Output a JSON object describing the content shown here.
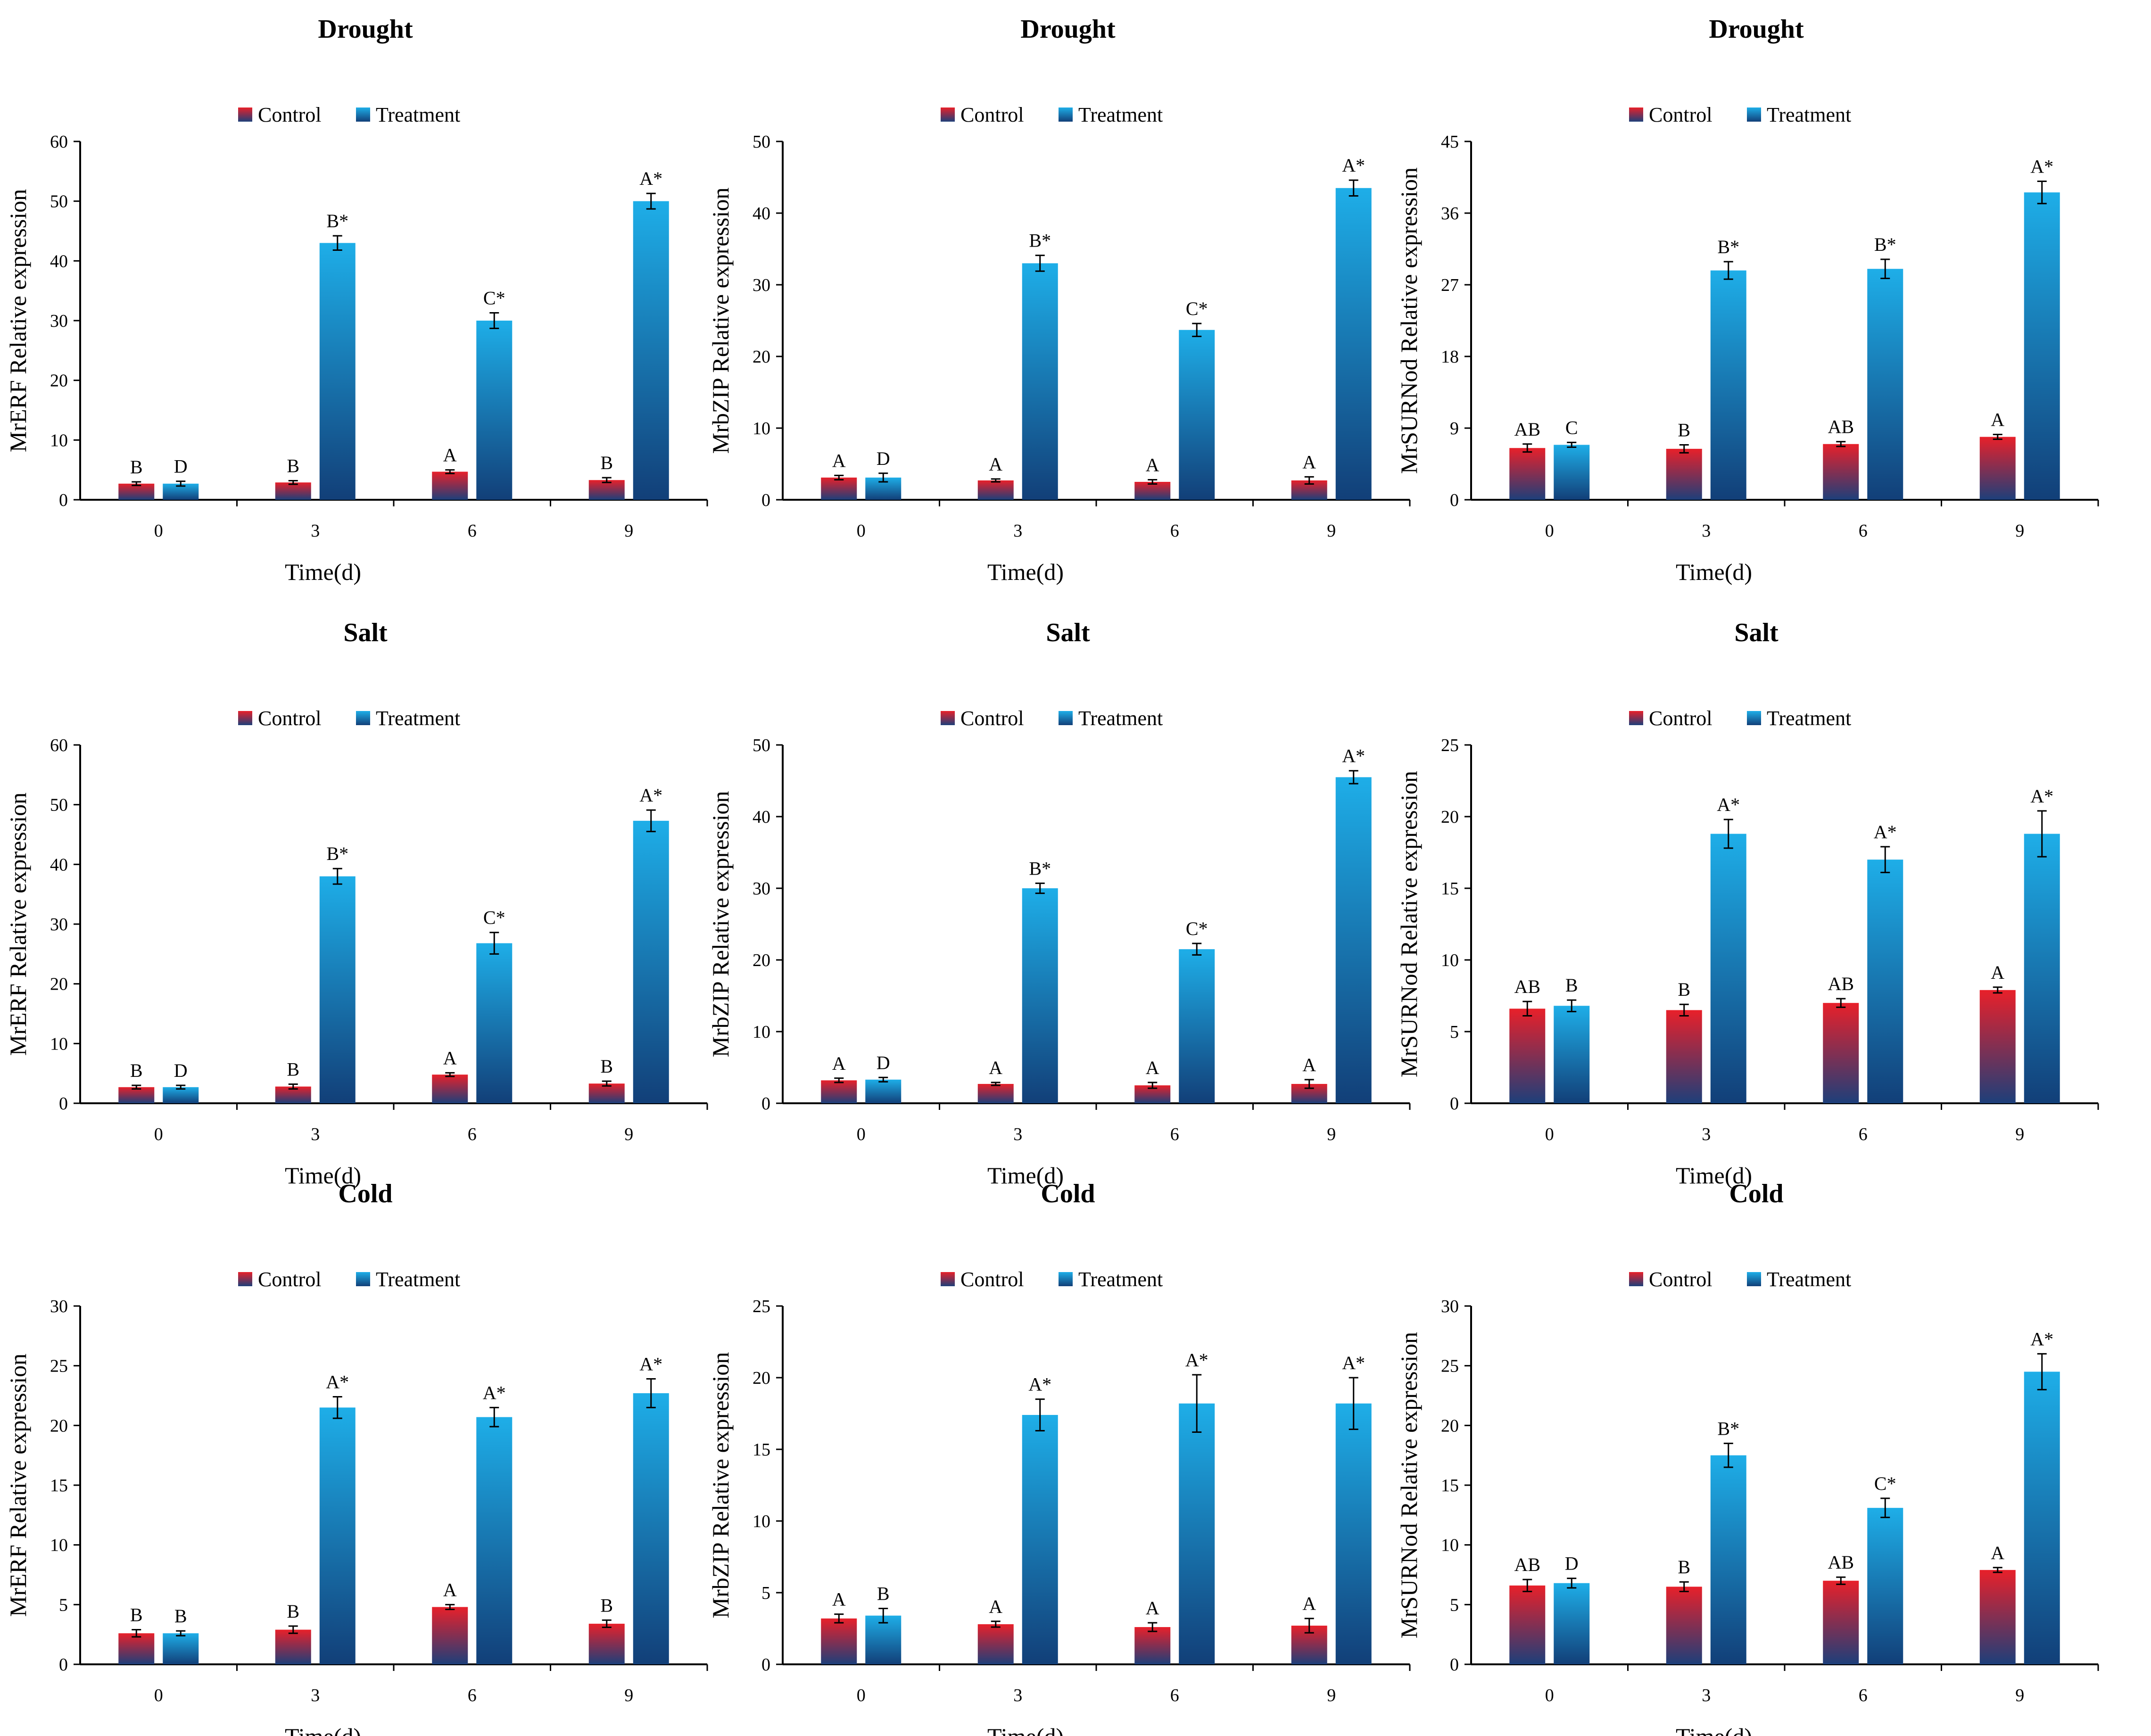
{
  "legend": {
    "control": "Control",
    "treatment": "Treatment"
  },
  "colors": {
    "control_top": "#e8202a",
    "control_bottom": "#1d3f7a",
    "treatment_top": "#1eaee8",
    "treatment_bottom": "#123f78",
    "axis": "#000000",
    "error_bar": "#000000"
  },
  "chart_data": [
    {
      "type": "bar",
      "title": "Drought",
      "ylabel": "MrERF Relative expression",
      "xlabel": "Time(d)",
      "categories": [
        "0",
        "3",
        "6",
        "9"
      ],
      "ylim": [
        0,
        60
      ],
      "yticks": [
        0,
        10,
        20,
        30,
        40,
        50,
        60
      ],
      "series": [
        {
          "name": "Control",
          "values": [
            2.7,
            2.9,
            4.7,
            3.3
          ],
          "errors": [
            0.3,
            0.3,
            0.3,
            0.4
          ],
          "labels": [
            "B",
            "B",
            "A",
            "B"
          ]
        },
        {
          "name": "Treatment",
          "values": [
            2.7,
            43.0,
            30.0,
            50.0
          ],
          "errors": [
            0.4,
            1.2,
            1.3,
            1.3
          ],
          "labels": [
            "D",
            "B*",
            "C*",
            "A*"
          ]
        }
      ]
    },
    {
      "type": "bar",
      "title": "Drought",
      "ylabel": "MrbZIP Relative expression",
      "xlabel": "Time(d)",
      "categories": [
        "0",
        "3",
        "6",
        "9"
      ],
      "ylim": [
        0,
        50
      ],
      "yticks": [
        0,
        10,
        20,
        30,
        40,
        50
      ],
      "series": [
        {
          "name": "Control",
          "values": [
            3.1,
            2.7,
            2.5,
            2.7
          ],
          "errors": [
            0.3,
            0.2,
            0.3,
            0.5
          ],
          "labels": [
            "A",
            "A",
            "A",
            "A"
          ]
        },
        {
          "name": "Treatment",
          "values": [
            3.1,
            33.0,
            23.7,
            43.5
          ],
          "errors": [
            0.6,
            1.1,
            0.9,
            1.1
          ],
          "labels": [
            "D",
            "B*",
            "C*",
            "A*"
          ]
        }
      ]
    },
    {
      "type": "bar",
      "title": "Drought",
      "ylabel": "MrSURNod Relative expression",
      "xlabel": "Time(d)",
      "categories": [
        "0",
        "3",
        "6",
        "9"
      ],
      "ylim": [
        0,
        45
      ],
      "yticks": [
        0,
        9,
        18,
        27,
        36,
        45
      ],
      "series": [
        {
          "name": "Control",
          "values": [
            6.5,
            6.4,
            7.0,
            7.9
          ],
          "errors": [
            0.5,
            0.5,
            0.3,
            0.3
          ],
          "labels": [
            "AB",
            "B",
            "AB",
            "A"
          ]
        },
        {
          "name": "Treatment",
          "values": [
            6.9,
            28.8,
            29.0,
            38.6
          ],
          "errors": [
            0.3,
            1.1,
            1.2,
            1.4
          ],
          "labels": [
            "C",
            "B*",
            "B*",
            "A*"
          ]
        }
      ]
    },
    {
      "type": "bar",
      "title": "Salt",
      "ylabel": "MrERF Relative expression",
      "xlabel": "Time(d)",
      "categories": [
        "0",
        "3",
        "6",
        "9"
      ],
      "ylim": [
        0,
        60
      ],
      "yticks": [
        0,
        10,
        20,
        30,
        40,
        50,
        60
      ],
      "series": [
        {
          "name": "Control",
          "values": [
            2.7,
            2.8,
            4.8,
            3.3
          ],
          "errors": [
            0.3,
            0.4,
            0.3,
            0.4
          ],
          "labels": [
            "B",
            "B",
            "A",
            "B"
          ]
        },
        {
          "name": "Treatment",
          "values": [
            2.7,
            38.0,
            26.8,
            47.3
          ],
          "errors": [
            0.3,
            1.3,
            1.8,
            1.8
          ],
          "labels": [
            "D",
            "B*",
            "C*",
            "A*"
          ]
        }
      ]
    },
    {
      "type": "bar",
      "title": "Salt",
      "ylabel": "MrbZIP Relative expression",
      "xlabel": "Time(d)",
      "categories": [
        "0",
        "3",
        "6",
        "9"
      ],
      "ylim": [
        0,
        50
      ],
      "yticks": [
        0,
        10,
        20,
        30,
        40,
        50
      ],
      "series": [
        {
          "name": "Control",
          "values": [
            3.2,
            2.7,
            2.5,
            2.7
          ],
          "errors": [
            0.3,
            0.2,
            0.4,
            0.6
          ],
          "labels": [
            "A",
            "A",
            "A",
            "A"
          ]
        },
        {
          "name": "Treatment",
          "values": [
            3.3,
            30.0,
            21.5,
            45.5
          ],
          "errors": [
            0.3,
            0.7,
            0.8,
            0.9
          ],
          "labels": [
            "D",
            "B*",
            "C*",
            "A*"
          ]
        }
      ]
    },
    {
      "type": "bar",
      "title": "Salt",
      "ylabel": "MrSURNod Relative expression",
      "xlabel": "Time(d)",
      "categories": [
        "0",
        "3",
        "6",
        "9"
      ],
      "ylim": [
        0,
        25
      ],
      "yticks": [
        0,
        5,
        10,
        15,
        20,
        25
      ],
      "series": [
        {
          "name": "Control",
          "values": [
            6.6,
            6.5,
            7.0,
            7.9
          ],
          "errors": [
            0.5,
            0.4,
            0.3,
            0.2
          ],
          "labels": [
            "AB",
            "B",
            "AB",
            "A"
          ]
        },
        {
          "name": "Treatment",
          "values": [
            6.8,
            18.8,
            17.0,
            18.8
          ],
          "errors": [
            0.4,
            1.0,
            0.9,
            1.6
          ],
          "labels": [
            "B",
            "A*",
            "A*",
            "A*"
          ]
        }
      ]
    },
    {
      "type": "bar",
      "title": "Cold",
      "ylabel": "MrERF Relative expression",
      "xlabel": "Time(d)",
      "categories": [
        "0",
        "3",
        "6",
        "9"
      ],
      "ylim": [
        0,
        30
      ],
      "yticks": [
        0,
        5,
        10,
        15,
        20,
        25,
        30
      ],
      "series": [
        {
          "name": "Control",
          "values": [
            2.6,
            2.9,
            4.8,
            3.4
          ],
          "errors": [
            0.3,
            0.3,
            0.2,
            0.3
          ],
          "labels": [
            "B",
            "B",
            "A",
            "B"
          ]
        },
        {
          "name": "Treatment",
          "values": [
            2.6,
            21.5,
            20.7,
            22.7
          ],
          "errors": [
            0.2,
            0.9,
            0.8,
            1.2
          ],
          "labels": [
            "B",
            "A*",
            "A*",
            "A*"
          ]
        }
      ]
    },
    {
      "type": "bar",
      "title": "Cold",
      "ylabel": "MrbZIP Relative expression",
      "xlabel": "Time(d)",
      "categories": [
        "0",
        "3",
        "6",
        "9"
      ],
      "ylim": [
        0,
        25
      ],
      "yticks": [
        0,
        5,
        10,
        15,
        20,
        25
      ],
      "series": [
        {
          "name": "Control",
          "values": [
            3.2,
            2.8,
            2.6,
            2.7
          ],
          "errors": [
            0.3,
            0.2,
            0.3,
            0.5
          ],
          "labels": [
            "A",
            "A",
            "A",
            "A"
          ]
        },
        {
          "name": "Treatment",
          "values": [
            3.4,
            17.4,
            18.2,
            18.2
          ],
          "errors": [
            0.5,
            1.1,
            2.0,
            1.8
          ],
          "labels": [
            "B",
            "A*",
            "A*",
            "A*"
          ]
        }
      ]
    },
    {
      "type": "bar",
      "title": "Cold",
      "ylabel": "MrSURNod Relative expression",
      "xlabel": "Time(d)",
      "categories": [
        "0",
        "3",
        "6",
        "9"
      ],
      "ylim": [
        0,
        30
      ],
      "yticks": [
        0,
        5,
        10,
        15,
        20,
        25,
        30
      ],
      "series": [
        {
          "name": "Control",
          "values": [
            6.6,
            6.5,
            7.0,
            7.9
          ],
          "errors": [
            0.5,
            0.4,
            0.3,
            0.2
          ],
          "labels": [
            "AB",
            "B",
            "AB",
            "A"
          ]
        },
        {
          "name": "Treatment",
          "values": [
            6.8,
            17.5,
            13.1,
            24.5
          ],
          "errors": [
            0.4,
            1.0,
            0.8,
            1.5
          ],
          "labels": [
            "D",
            "B*",
            "C*",
            "A*"
          ]
        }
      ]
    }
  ]
}
